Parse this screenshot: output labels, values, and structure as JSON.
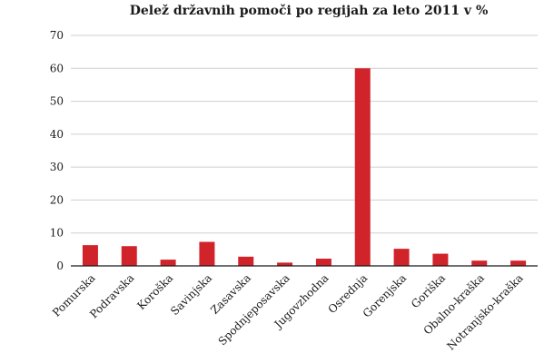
{
  "chart_data": {
    "type": "bar",
    "title": "Delež državnih pomoči po regijah za leto 2011 v %",
    "xlabel": "",
    "ylabel": "",
    "ylim": [
      0,
      70
    ],
    "yticks": [
      0,
      10,
      20,
      30,
      40,
      50,
      60,
      70
    ],
    "grid": true,
    "legend": "none",
    "categories": [
      "Pomurska",
      "Podravska",
      "Koroška",
      "Savinjska",
      "Zasavska",
      "Spodnjeposavska",
      "Jugovzhodna",
      "Osrednja",
      "Gorenjska",
      "Goriška",
      "Obalno-kraška",
      "Notranjsko-kraška"
    ],
    "values": [
      6.3,
      6.0,
      1.9,
      7.3,
      2.8,
      1.0,
      2.2,
      60.0,
      5.2,
      3.7,
      1.6,
      1.6
    ],
    "colors": {
      "bar": "#d1232a",
      "grid": "#cfcfcf",
      "axis": "#1a1a1a"
    }
  }
}
